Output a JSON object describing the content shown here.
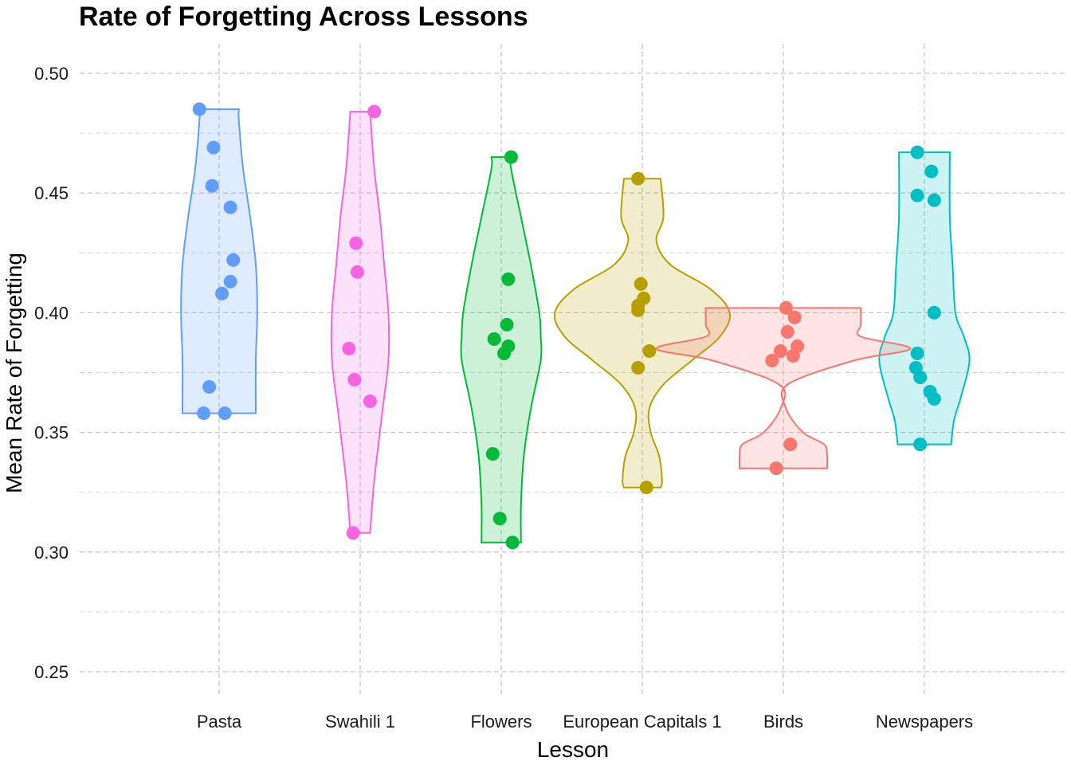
{
  "chart_data": {
    "type": "violin",
    "title": "Rate of Forgetting Across Lessons",
    "xlabel": "Lesson",
    "ylabel": "Mean Rate of Forgetting",
    "ylim": [
      0.235,
      0.515
    ],
    "yticks": [
      "0.25",
      "0.30",
      "0.35",
      "0.40",
      "0.45",
      "0.50"
    ],
    "grid": true,
    "legend": "none",
    "categories": [
      "Pasta",
      "Swahili 1",
      "Flowers",
      "European Capitals 1",
      "Birds",
      "Newspapers"
    ],
    "series": [
      {
        "category": "Pasta",
        "color": "#619CFF",
        "points": [
          [
            -0.14,
            0.485
          ],
          [
            -0.04,
            0.469
          ],
          [
            -0.05,
            0.453
          ],
          [
            0.08,
            0.444
          ],
          [
            0.1,
            0.422
          ],
          [
            0.08,
            0.413
          ],
          [
            0.02,
            0.408
          ],
          [
            -0.07,
            0.369
          ],
          [
            -0.11,
            0.358
          ],
          [
            0.04,
            0.358
          ]
        ],
        "violin": [
          [
            0.358,
            0.26
          ],
          [
            0.38,
            0.26
          ],
          [
            0.4,
            0.27
          ],
          [
            0.42,
            0.26
          ],
          [
            0.44,
            0.22
          ],
          [
            0.46,
            0.17
          ],
          [
            0.48,
            0.14
          ],
          [
            0.485,
            0.14
          ]
        ]
      },
      {
        "category": "Swahili 1",
        "color": "#F564E3",
        "points": [
          [
            0.1,
            0.484
          ],
          [
            -0.03,
            0.429
          ],
          [
            -0.02,
            0.417
          ],
          [
            -0.08,
            0.385
          ],
          [
            -0.04,
            0.372
          ],
          [
            0.07,
            0.363
          ],
          [
            -0.05,
            0.308
          ]
        ],
        "violin": [
          [
            0.308,
            0.07
          ],
          [
            0.33,
            0.1
          ],
          [
            0.36,
            0.16
          ],
          [
            0.38,
            0.2
          ],
          [
            0.4,
            0.2
          ],
          [
            0.42,
            0.17
          ],
          [
            0.44,
            0.14
          ],
          [
            0.46,
            0.1
          ],
          [
            0.484,
            0.07
          ]
        ]
      },
      {
        "category": "Flowers",
        "color": "#00BA38",
        "points": [
          [
            0.07,
            0.465
          ],
          [
            0.05,
            0.414
          ],
          [
            0.04,
            0.395
          ],
          [
            -0.05,
            0.389
          ],
          [
            0.05,
            0.386
          ],
          [
            0.02,
            0.383
          ],
          [
            -0.06,
            0.341
          ],
          [
            -0.01,
            0.314
          ],
          [
            0.08,
            0.304
          ]
        ],
        "violin": [
          [
            0.304,
            0.14
          ],
          [
            0.32,
            0.14
          ],
          [
            0.34,
            0.16
          ],
          [
            0.36,
            0.21
          ],
          [
            0.38,
            0.28
          ],
          [
            0.39,
            0.28
          ],
          [
            0.4,
            0.27
          ],
          [
            0.42,
            0.21
          ],
          [
            0.44,
            0.14
          ],
          [
            0.46,
            0.07
          ],
          [
            0.465,
            0.07
          ]
        ]
      },
      {
        "category": "European Capitals 1",
        "color": "#B79F00",
        "points": [
          [
            -0.03,
            0.456
          ],
          [
            -0.01,
            0.412
          ],
          [
            0.01,
            0.406
          ],
          [
            -0.03,
            0.403
          ],
          [
            -0.03,
            0.401
          ],
          [
            0.05,
            0.384
          ],
          [
            -0.03,
            0.377
          ],
          [
            0.03,
            0.327
          ]
        ],
        "violin": [
          [
            0.327,
            0.13
          ],
          [
            0.33,
            0.14
          ],
          [
            0.34,
            0.12
          ],
          [
            0.35,
            0.06
          ],
          [
            0.36,
            0.05
          ],
          [
            0.37,
            0.15
          ],
          [
            0.38,
            0.35
          ],
          [
            0.39,
            0.55
          ],
          [
            0.4,
            0.62
          ],
          [
            0.41,
            0.48
          ],
          [
            0.42,
            0.2
          ],
          [
            0.43,
            0.1
          ],
          [
            0.44,
            0.15
          ],
          [
            0.456,
            0.13
          ]
        ]
      },
      {
        "category": "Birds",
        "color": "#F8766D",
        "points": [
          [
            0.02,
            0.402
          ],
          [
            0.08,
            0.398
          ],
          [
            0.03,
            0.392
          ],
          [
            0.1,
            0.386
          ],
          [
            -0.02,
            0.384
          ],
          [
            0.07,
            0.382
          ],
          [
            -0.08,
            0.38
          ],
          [
            0.05,
            0.345
          ],
          [
            -0.05,
            0.335
          ]
        ],
        "violin": [
          [
            0.335,
            0.31
          ],
          [
            0.34,
            0.31
          ],
          [
            0.345,
            0.29
          ],
          [
            0.35,
            0.14
          ],
          [
            0.36,
            0.02
          ],
          [
            0.37,
            0.03
          ],
          [
            0.38,
            0.5
          ],
          [
            0.385,
            0.9
          ],
          [
            0.39,
            0.55
          ],
          [
            0.395,
            0.55
          ],
          [
            0.402,
            0.55
          ]
        ]
      },
      {
        "category": "Newspapers",
        "color": "#00BFC4",
        "points": [
          [
            -0.05,
            0.467
          ],
          [
            0.05,
            0.459
          ],
          [
            -0.05,
            0.449
          ],
          [
            0.07,
            0.447
          ],
          [
            0.07,
            0.4
          ],
          [
            -0.05,
            0.383
          ],
          [
            -0.06,
            0.377
          ],
          [
            -0.03,
            0.373
          ],
          [
            0.04,
            0.367
          ],
          [
            0.07,
            0.364
          ],
          [
            -0.03,
            0.345
          ]
        ],
        "violin": [
          [
            0.345,
            0.19
          ],
          [
            0.355,
            0.21
          ],
          [
            0.365,
            0.26
          ],
          [
            0.38,
            0.32
          ],
          [
            0.39,
            0.28
          ],
          [
            0.4,
            0.22
          ],
          [
            0.42,
            0.2
          ],
          [
            0.44,
            0.18
          ],
          [
            0.467,
            0.18
          ]
        ]
      }
    ]
  }
}
